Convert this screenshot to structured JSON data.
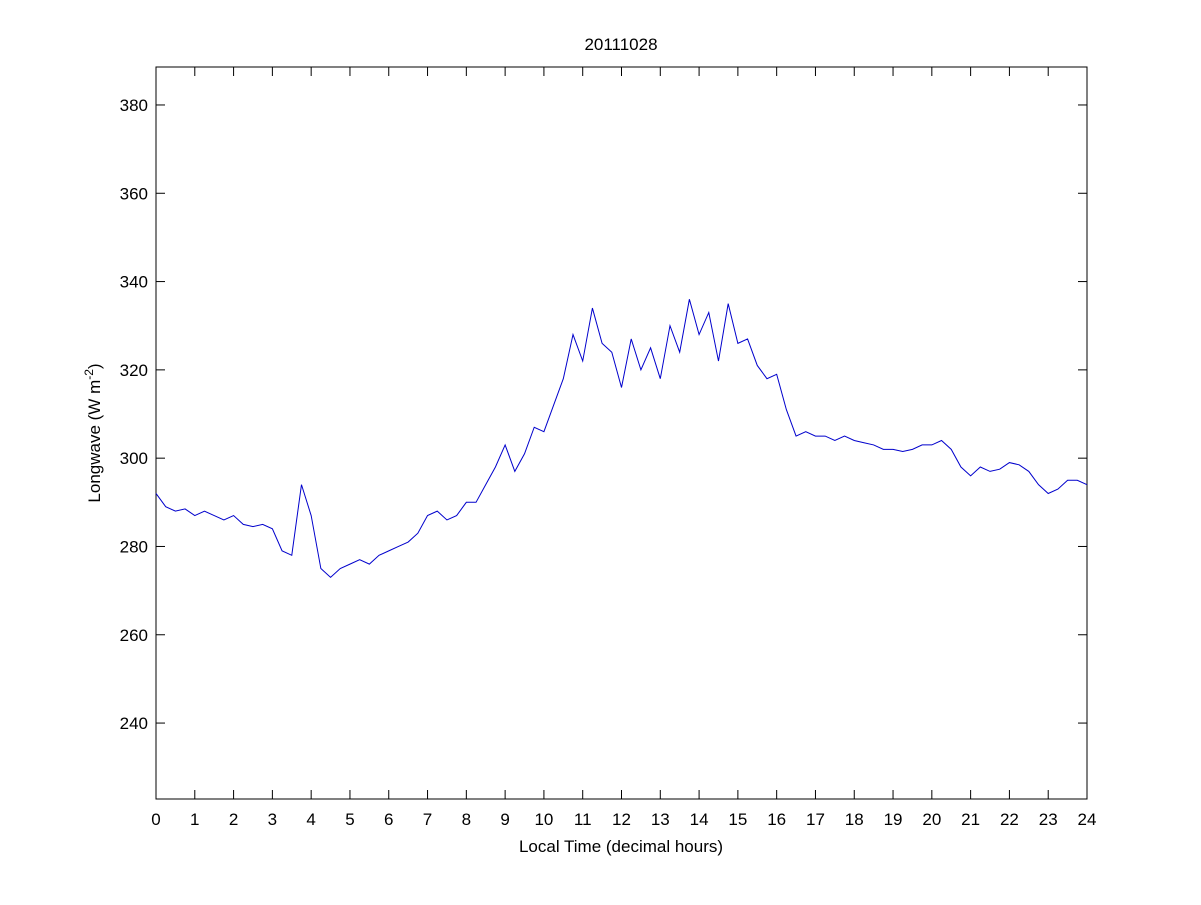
{
  "chart_data": {
    "type": "line",
    "title": "20111028",
    "xlabel": "Local Time (decimal hours)",
    "ylabel_parts": [
      "Longwave (W m",
      "-2",
      ")"
    ],
    "xlim": [
      0,
      24
    ],
    "xticks": [
      0,
      1,
      2,
      3,
      4,
      5,
      6,
      7,
      8,
      9,
      10,
      11,
      12,
      13,
      14,
      15,
      16,
      17,
      18,
      19,
      20,
      21,
      22,
      23,
      24
    ],
    "ylim": [
      222.8,
      388.6
    ],
    "yticks": [
      240,
      260,
      280,
      300,
      320,
      340,
      360,
      380
    ],
    "grid": false,
    "x": [
      0,
      0.25,
      0.5,
      0.75,
      1,
      1.25,
      1.5,
      1.75,
      2,
      2.25,
      2.5,
      2.75,
      3,
      3.25,
      3.5,
      3.75,
      4,
      4.25,
      4.5,
      4.75,
      5,
      5.25,
      5.5,
      5.75,
      6,
      6.25,
      6.5,
      6.75,
      7,
      7.25,
      7.5,
      7.75,
      8,
      8.25,
      8.5,
      8.75,
      9,
      9.25,
      9.5,
      9.75,
      10,
      10.25,
      10.5,
      10.75,
      11,
      11.25,
      11.5,
      11.75,
      12,
      12.25,
      12.5,
      12.75,
      13,
      13.25,
      13.5,
      13.75,
      14,
      14.25,
      14.5,
      14.75,
      15,
      15.25,
      15.5,
      15.75,
      16,
      16.25,
      16.5,
      16.75,
      17,
      17.25,
      17.5,
      17.75,
      18,
      18.25,
      18.5,
      18.75,
      19,
      19.25,
      19.5,
      19.75,
      20,
      20.25,
      20.5,
      20.75,
      21,
      21.25,
      21.5,
      21.75,
      22,
      22.25,
      22.5,
      22.75,
      23,
      23.25,
      23.5,
      23.75,
      24
    ],
    "series": [
      {
        "color": "#0000cc",
        "values": [
          292,
          289,
          288,
          288.5,
          287,
          288,
          287,
          286,
          287,
          285,
          284.5,
          285,
          284,
          279,
          278,
          294,
          287,
          275,
          273,
          275,
          276,
          277,
          276,
          278,
          279,
          280,
          281,
          283,
          287,
          288,
          286,
          287,
          290,
          290,
          294,
          298,
          303,
          297,
          301,
          307,
          306,
          312,
          318,
          328,
          322,
          334,
          326,
          324,
          316,
          327,
          320,
          325,
          318,
          330,
          324,
          336,
          328,
          333,
          322,
          335,
          326,
          327,
          321,
          318,
          319,
          311,
          305,
          306,
          305,
          305,
          304,
          305,
          304,
          303.5,
          303,
          302,
          302,
          301.5,
          302,
          303,
          303,
          304,
          302,
          298,
          296,
          298,
          297,
          297.5,
          299,
          298.5,
          297,
          294,
          292,
          293,
          295,
          295,
          294
        ]
      }
    ]
  }
}
